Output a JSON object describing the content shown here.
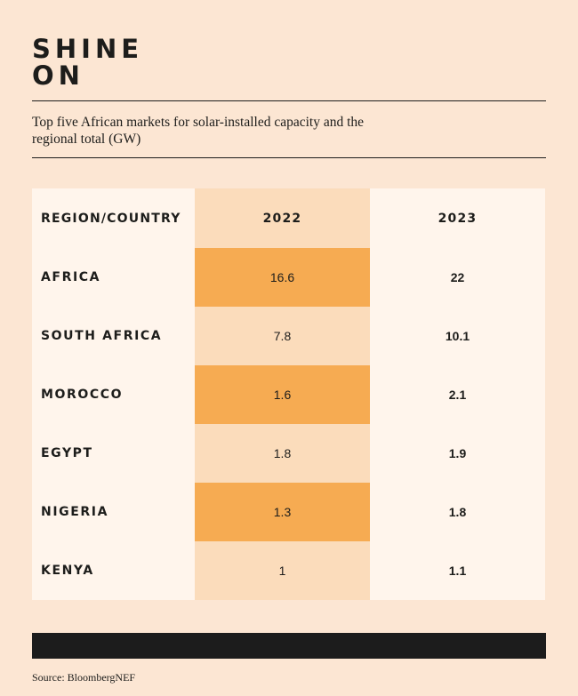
{
  "title": {
    "line1": "SHINE",
    "line2": "ON"
  },
  "subtitle": "Top five African markets for solar-installed capacity and the regional total (GW)",
  "colors": {
    "background": "#fce6d3",
    "strong": "#f6ab52",
    "light": "#fbdcbb",
    "pale": "#fff5ec",
    "bar": "#1c1c1c"
  },
  "chart_data": {
    "type": "table",
    "columns": [
      "REGION/COUNTRY",
      "2022",
      "2023"
    ],
    "rows": [
      {
        "region": "AFRICA",
        "v2022": "16.6",
        "v2023": "22",
        "shade": "strong"
      },
      {
        "region": "SOUTH AFRICA",
        "v2022": "7.8",
        "v2023": "10.1",
        "shade": "light"
      },
      {
        "region": "MOROCCO",
        "v2022": "1.6",
        "v2023": "2.1",
        "shade": "strong"
      },
      {
        "region": "EGYPT",
        "v2022": "1.8",
        "v2023": "1.9",
        "shade": "light"
      },
      {
        "region": "NIGERIA",
        "v2022": "1.3",
        "v2023": "1.8",
        "shade": "strong"
      },
      {
        "region": "KENYA",
        "v2022": "1",
        "v2023": "1.1",
        "shade": "light"
      }
    ],
    "unit": "GW"
  },
  "source": "Source: BloombergNEF"
}
